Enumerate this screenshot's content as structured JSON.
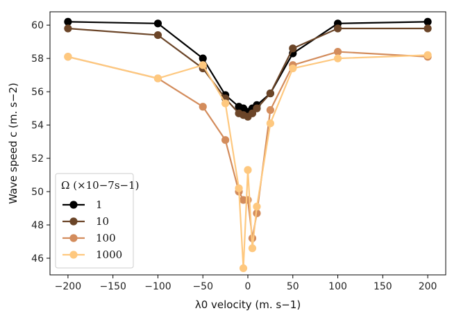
{
  "chart_data": {
    "type": "line",
    "title": "",
    "xlabel": "λ0 velocity (m. s−1)",
    "ylabel": "Wave speed c (m. s−2)",
    "xlim": [
      -220,
      220
    ],
    "ylim": [
      45.0,
      60.8
    ],
    "xticks": [
      -200,
      -150,
      -100,
      -50,
      0,
      50,
      100,
      150,
      200
    ],
    "yticks": [
      46,
      48,
      50,
      52,
      54,
      56,
      58,
      60
    ],
    "xtick_labels": [
      "−200",
      "−150",
      "−100",
      "−50",
      "0",
      "50",
      "100",
      "150",
      "200"
    ],
    "ytick_labels": [
      "46",
      "48",
      "50",
      "52",
      "54",
      "56",
      "58",
      "60"
    ],
    "legend": {
      "title": "Ω (×10−7s−1)",
      "placement": "lower-left"
    },
    "series": [
      {
        "name": "1",
        "color": "#000000",
        "x": [
          -200,
          -100,
          -50,
          -25,
          -10,
          -5,
          0,
          5,
          10,
          25,
          50,
          100,
          200
        ],
        "y": [
          60.2,
          60.1,
          58.0,
          55.8,
          55.1,
          55.0,
          54.8,
          55.0,
          55.2,
          55.9,
          58.3,
          60.1,
          60.2
        ]
      },
      {
        "name": "10",
        "color": "#6b4528",
        "x": [
          -200,
          -100,
          -50,
          -25,
          -10,
          -5,
          0,
          5,
          10,
          25,
          50,
          100,
          200
        ],
        "y": [
          59.8,
          59.4,
          57.4,
          55.6,
          54.7,
          54.6,
          54.5,
          54.7,
          55.0,
          55.9,
          58.6,
          59.8,
          59.8
        ]
      },
      {
        "name": "100",
        "color": "#d38c5c",
        "x": [
          -200,
          -100,
          -50,
          -25,
          -10,
          -5,
          0,
          5,
          10,
          25,
          50,
          100,
          200
        ],
        "y": [
          58.1,
          56.8,
          55.1,
          53.1,
          50.0,
          49.5,
          49.5,
          47.2,
          48.7,
          54.9,
          57.6,
          58.4,
          58.1
        ]
      },
      {
        "name": "1000",
        "color": "#fec87f",
        "x": [
          -200,
          -100,
          -50,
          -25,
          -10,
          -5,
          0,
          5,
          10,
          25,
          50,
          100,
          200
        ],
        "y": [
          58.1,
          56.8,
          57.6,
          55.3,
          50.2,
          45.4,
          51.3,
          46.6,
          49.1,
          54.1,
          57.4,
          58.0,
          58.2
        ]
      }
    ]
  }
}
